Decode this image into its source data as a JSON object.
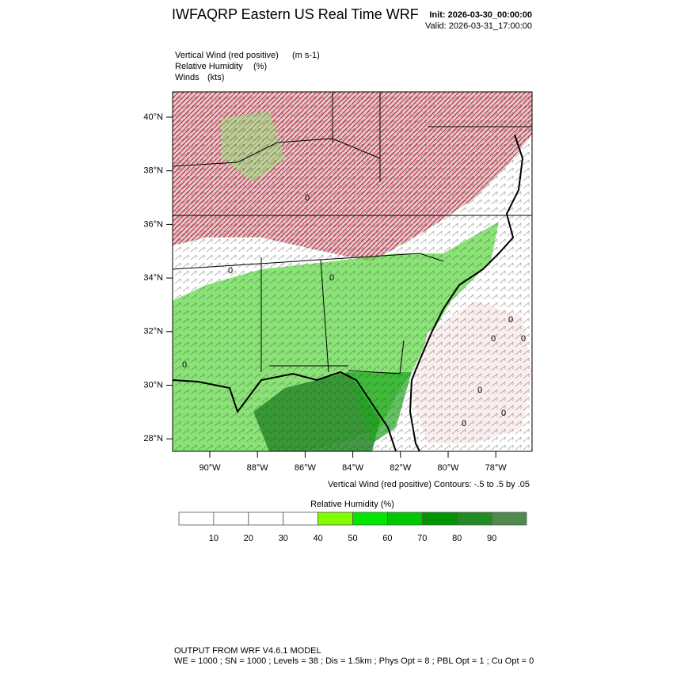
{
  "header": {
    "title": "IWFAQRP Eastern US Real Time WRF",
    "init": "Init: 2026-03-30_00:00:00",
    "valid": "Valid: 2026-03-31_17:00:00"
  },
  "fields": [
    {
      "name": "Vertical Wind (red positive)",
      "units": "(m s-1)"
    },
    {
      "name": "Relative Humidity",
      "units": "(%)"
    },
    {
      "name": "Winds",
      "units": "(kts)"
    }
  ],
  "map": {
    "lat_labels": [
      "40°N",
      "38°N",
      "36°N",
      "34°N",
      "32°N",
      "30°N",
      "28°N"
    ],
    "lon_labels": [
      "90°W",
      "88°W",
      "86°W",
      "84°W",
      "82°W",
      "80°W",
      "78°W"
    ],
    "contour_label": "0",
    "contour_note": "Vertical Wind (red positive) Contours: -.5 to .5 by .05"
  },
  "colorbar": {
    "title": "Relative Humidity  (%)",
    "labels": [
      10,
      20,
      30,
      40,
      50,
      60,
      70,
      80,
      90
    ],
    "colors": [
      "#ffffff",
      "#ffffff",
      "#ffffff",
      "#ffffff",
      "#80ff00",
      "#00e600",
      "#00c800",
      "#009600",
      "#228b22",
      "#4f8a4f"
    ]
  },
  "footer": {
    "line1": "OUTPUT FROM WRF V4.6.1 MODEL",
    "line2": "WE = 1000 ; SN = 1000 ; Levels = 38 ; Dis = 1.5km ; Phys Opt = 8 ; PBL Opt = 1 ; Cu Opt = 0"
  }
}
